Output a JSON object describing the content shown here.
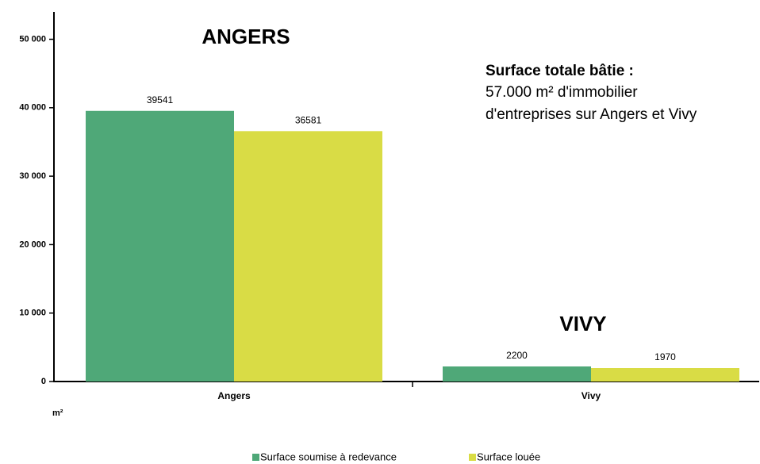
{
  "chart_data": {
    "type": "bar",
    "categories": [
      "Angers",
      "Vivy"
    ],
    "series": [
      {
        "name": "Surface soumise à redevance",
        "color": "#4fa878",
        "values": [
          39541,
          2200
        ]
      },
      {
        "name": "Surface louée",
        "color": "#d9dc45",
        "values": [
          36581,
          1970
        ]
      }
    ],
    "ylim": [
      0,
      54000
    ],
    "yticks": [
      0,
      {
        "value": 10000,
        "label": "10 000"
      },
      {
        "value": 20000,
        "label": "20 000"
      },
      {
        "value": 30000,
        "label": "30 000"
      },
      {
        "value": 40000,
        "label": "40 000"
      },
      {
        "value": 50000,
        "label": "50 000"
      }
    ],
    "y_label": "m²",
    "annotations": [
      "ANGERS",
      "VIVY",
      "Surface totale bâtie :",
      "57.000 m² d'immobilier",
      "d'entreprises sur Angers et Vivy"
    ],
    "legend": "bottom"
  }
}
